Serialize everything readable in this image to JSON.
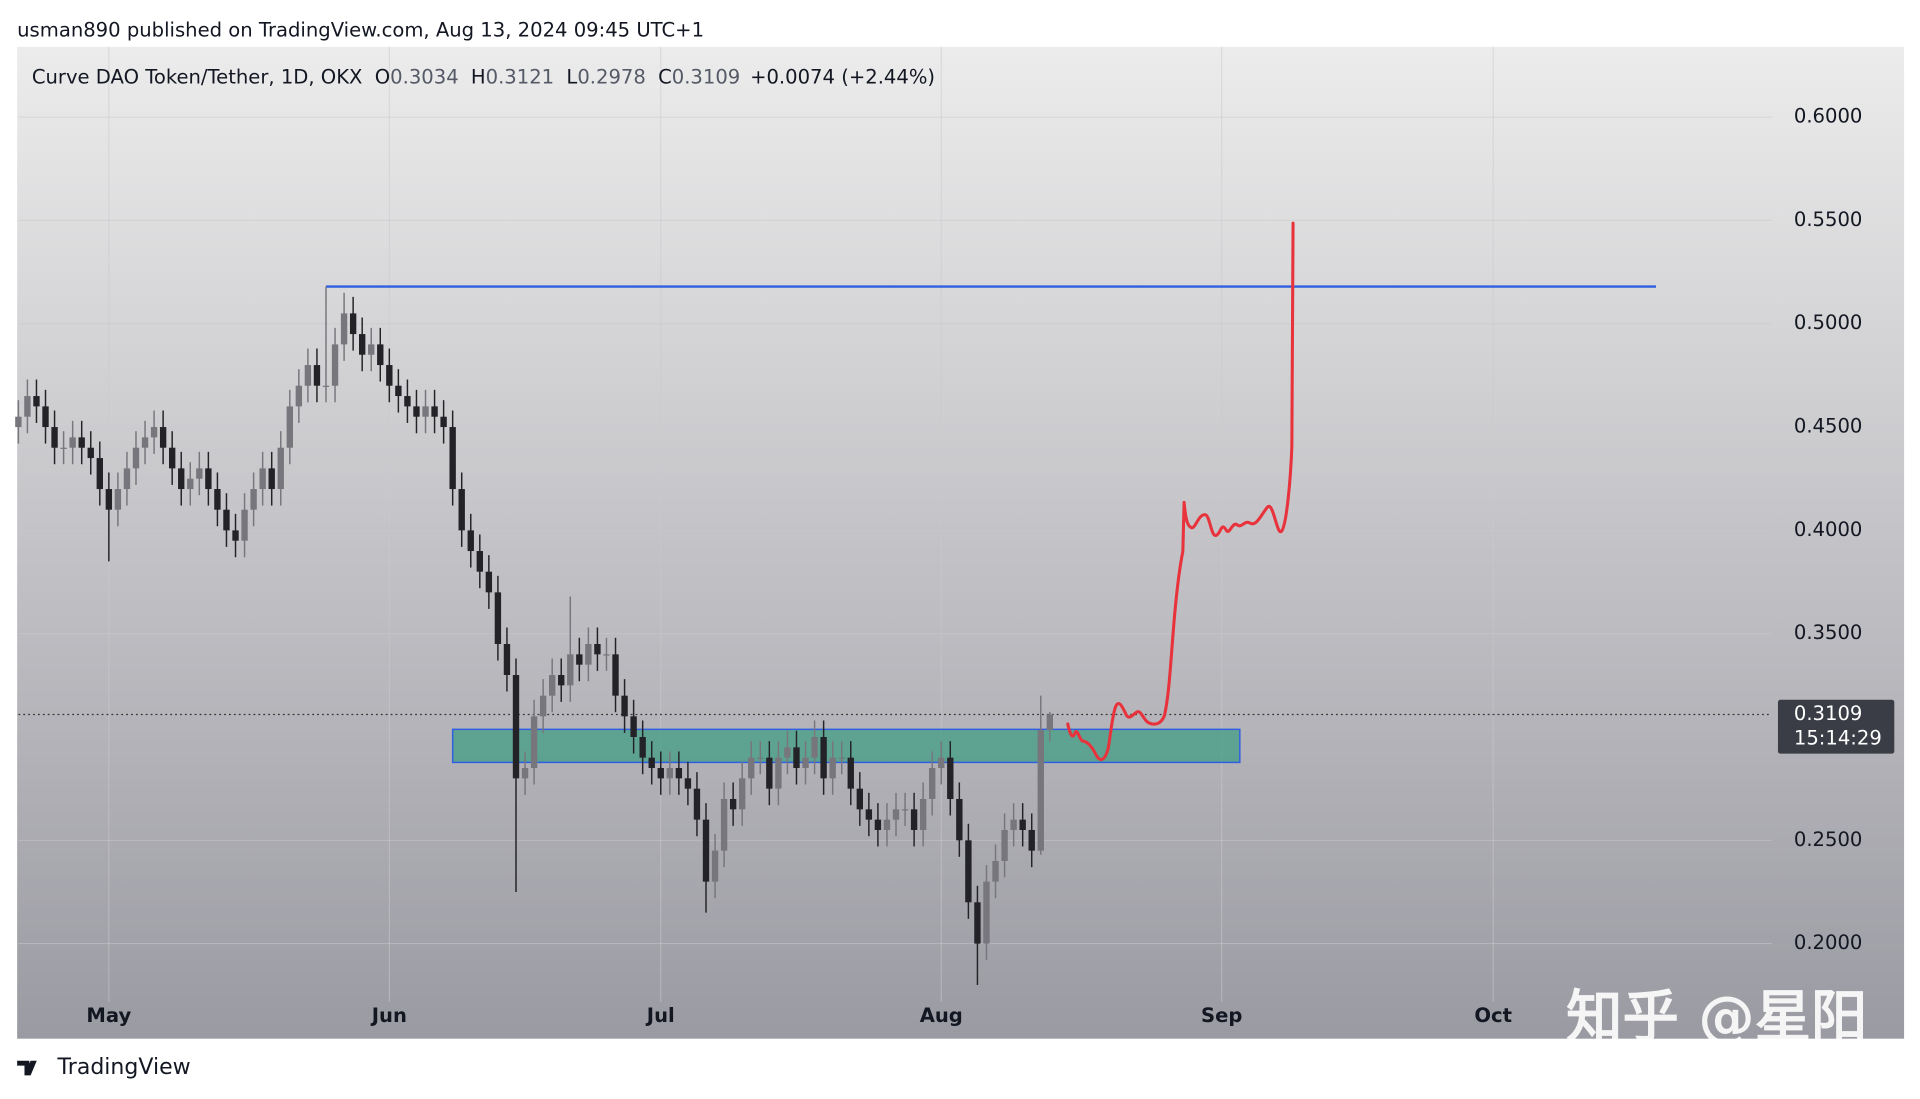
{
  "header": "usman890 published on TradingView.com, Aug 13, 2024 09:45 UTC+1",
  "chart_data": {
    "type": "candlestick",
    "symbol": "Curve DAO Token/Tether, 1D, OKX",
    "legend_ohlc": [
      {
        "label": "O",
        "value": 0.3034
      },
      {
        "label": "H",
        "value": 0.3121
      },
      {
        "label": "L",
        "value": 0.2978
      },
      {
        "label": "C",
        "value": 0.3109
      }
    ],
    "change": "+0.0074 (+2.44%)",
    "open": [
      0.45,
      0.455,
      0.465,
      0.46,
      0.45,
      0.44,
      0.44,
      0.445,
      0.44,
      0.435,
      0.42,
      0.41,
      0.42,
      0.43,
      0.44,
      0.445,
      0.45,
      0.44,
      0.43,
      0.42,
      0.425,
      0.43,
      0.42,
      0.41,
      0.4,
      0.395,
      0.41,
      0.42,
      0.43,
      0.42,
      0.44,
      0.46,
      0.47,
      0.48,
      0.47,
      0.47,
      0.49,
      0.505,
      0.495,
      0.485,
      0.49,
      0.48,
      0.47,
      0.465,
      0.46,
      0.455,
      0.46,
      0.455,
      0.45,
      0.42,
      0.4,
      0.39,
      0.38,
      0.37,
      0.345,
      0.33,
      0.28,
      0.285,
      0.31,
      0.32,
      0.33,
      0.325,
      0.34,
      0.335,
      0.345,
      0.34,
      0.34,
      0.32,
      0.31,
      0.3,
      0.29,
      0.285,
      0.28,
      0.285,
      0.28,
      0.275,
      0.26,
      0.23,
      0.245,
      0.27,
      0.265,
      0.28,
      0.29,
      0.29,
      0.275,
      0.29,
      0.295,
      0.285,
      0.29,
      0.3,
      0.28,
      0.29,
      0.29,
      0.275,
      0.265,
      0.26,
      0.255,
      0.26,
      0.265,
      0.265,
      0.255,
      0.27,
      0.285,
      0.29,
      0.27,
      0.25,
      0.22,
      0.2,
      0.23,
      0.24,
      0.255,
      0.26,
      0.255,
      0.245,
      0.3034
    ],
    "high": [
      0.463,
      0.473,
      0.473,
      0.468,
      0.458,
      0.448,
      0.453,
      0.453,
      0.448,
      0.443,
      0.428,
      0.428,
      0.438,
      0.448,
      0.453,
      0.458,
      0.458,
      0.448,
      0.438,
      0.433,
      0.438,
      0.438,
      0.428,
      0.418,
      0.408,
      0.418,
      0.428,
      0.438,
      0.438,
      0.448,
      0.468,
      0.478,
      0.488,
      0.488,
      0.518,
      0.498,
      0.515,
      0.513,
      0.503,
      0.498,
      0.498,
      0.488,
      0.478,
      0.473,
      0.468,
      0.468,
      0.468,
      0.463,
      0.458,
      0.428,
      0.408,
      0.398,
      0.388,
      0.378,
      0.353,
      0.338,
      0.293,
      0.318,
      0.328,
      0.338,
      0.338,
      0.368,
      0.348,
      0.353,
      0.353,
      0.348,
      0.348,
      0.328,
      0.318,
      0.308,
      0.298,
      0.293,
      0.293,
      0.293,
      0.288,
      0.283,
      0.268,
      0.253,
      0.278,
      0.278,
      0.288,
      0.298,
      0.298,
      0.298,
      0.298,
      0.303,
      0.303,
      0.298,
      0.308,
      0.308,
      0.298,
      0.298,
      0.298,
      0.283,
      0.273,
      0.268,
      0.268,
      0.273,
      0.273,
      0.273,
      0.278,
      0.293,
      0.298,
      0.298,
      0.278,
      0.258,
      0.228,
      0.238,
      0.248,
      0.263,
      0.268,
      0.268,
      0.263,
      0.32,
      0.3121
    ],
    "low": [
      0.442,
      0.447,
      0.452,
      0.442,
      0.432,
      0.432,
      0.432,
      0.432,
      0.427,
      0.412,
      0.385,
      0.402,
      0.412,
      0.422,
      0.432,
      0.437,
      0.432,
      0.422,
      0.412,
      0.412,
      0.417,
      0.412,
      0.402,
      0.392,
      0.387,
      0.387,
      0.402,
      0.412,
      0.412,
      0.412,
      0.432,
      0.452,
      0.462,
      0.462,
      0.462,
      0.462,
      0.482,
      0.487,
      0.477,
      0.477,
      0.472,
      0.462,
      0.457,
      0.452,
      0.447,
      0.447,
      0.447,
      0.442,
      0.412,
      0.392,
      0.382,
      0.372,
      0.362,
      0.337,
      0.322,
      0.225,
      0.272,
      0.277,
      0.302,
      0.312,
      0.317,
      0.317,
      0.327,
      0.327,
      0.332,
      0.332,
      0.312,
      0.302,
      0.292,
      0.282,
      0.277,
      0.272,
      0.272,
      0.272,
      0.267,
      0.252,
      0.215,
      0.222,
      0.237,
      0.257,
      0.257,
      0.272,
      0.282,
      0.267,
      0.267,
      0.282,
      0.277,
      0.277,
      0.282,
      0.272,
      0.272,
      0.282,
      0.267,
      0.257,
      0.252,
      0.247,
      0.247,
      0.252,
      0.257,
      0.247,
      0.247,
      0.262,
      0.277,
      0.262,
      0.242,
      0.212,
      0.18,
      0.192,
      0.222,
      0.232,
      0.247,
      0.247,
      0.237,
      0.243,
      0.2978
    ],
    "close": [
      0.455,
      0.465,
      0.46,
      0.45,
      0.44,
      0.44,
      0.445,
      0.44,
      0.435,
      0.42,
      0.41,
      0.42,
      0.43,
      0.44,
      0.445,
      0.45,
      0.44,
      0.43,
      0.42,
      0.425,
      0.43,
      0.42,
      0.41,
      0.4,
      0.395,
      0.41,
      0.42,
      0.43,
      0.42,
      0.44,
      0.46,
      0.47,
      0.48,
      0.47,
      0.47,
      0.49,
      0.505,
      0.495,
      0.485,
      0.49,
      0.48,
      0.47,
      0.465,
      0.46,
      0.455,
      0.46,
      0.455,
      0.45,
      0.42,
      0.4,
      0.39,
      0.38,
      0.37,
      0.345,
      0.33,
      0.28,
      0.285,
      0.31,
      0.32,
      0.33,
      0.325,
      0.34,
      0.335,
      0.345,
      0.34,
      0.34,
      0.32,
      0.31,
      0.3,
      0.29,
      0.285,
      0.28,
      0.285,
      0.28,
      0.275,
      0.26,
      0.23,
      0.245,
      0.27,
      0.265,
      0.28,
      0.29,
      0.29,
      0.275,
      0.29,
      0.295,
      0.285,
      0.29,
      0.3,
      0.28,
      0.29,
      0.29,
      0.275,
      0.265,
      0.26,
      0.255,
      0.26,
      0.265,
      0.265,
      0.255,
      0.27,
      0.285,
      0.29,
      0.27,
      0.25,
      0.22,
      0.2,
      0.23,
      0.24,
      0.255,
      0.26,
      0.255,
      0.245,
      0.3034,
      0.3109
    ],
    "xlim": [
      0,
      193.8
    ],
    "xticks": [
      {
        "value": 10,
        "label": "May"
      },
      {
        "value": 41,
        "label": "Jun"
      },
      {
        "value": 71,
        "label": "Jul"
      },
      {
        "value": 102,
        "label": "Aug"
      },
      {
        "value": 133,
        "label": "Sep"
      },
      {
        "value": 163,
        "label": "Oct"
      }
    ],
    "ylim": [
      0.154,
      0.634
    ],
    "yticks": [
      {
        "value": 0.2,
        "label": "0.2000"
      },
      {
        "value": 0.25,
        "label": "0.2500"
      },
      {
        "value": 0.35,
        "label": "0.3500"
      },
      {
        "value": 0.4,
        "label": "0.4000"
      },
      {
        "value": 0.45,
        "label": "0.4500"
      },
      {
        "value": 0.5,
        "label": "0.5000"
      },
      {
        "value": 0.55,
        "label": "0.5500"
      },
      {
        "value": 0.6,
        "label": "0.6000"
      }
    ],
    "grid": true,
    "colors": {
      "up": "#76767c",
      "down": "#232327"
    },
    "last_price": {
      "value": 0.3109,
      "countdown": "15:14:29"
    },
    "level": {
      "price": 0.518,
      "from": 34,
      "to": 181,
      "color": "#2f5fe0"
    },
    "zone": {
      "top": 0.3037,
      "bottom": 0.2877,
      "from": 48,
      "to": 135,
      "color": "#4fa08b"
    }
  },
  "watermark": "知乎 @星阳",
  "brand": "TradingView"
}
